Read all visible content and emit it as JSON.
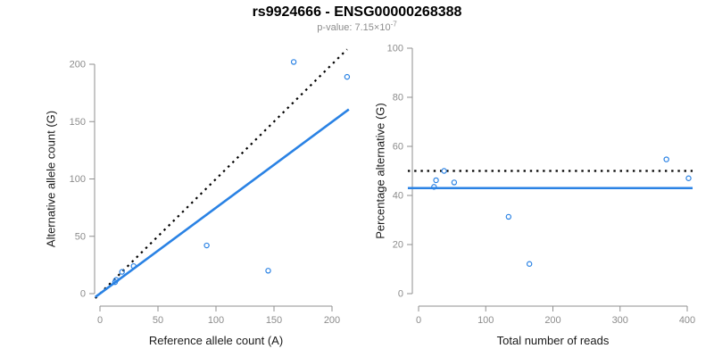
{
  "header": {
    "title": "rs9924666 - ENSG00000268388",
    "subtitle_text": "p-value: 7.15×10",
    "subtitle_exponent": "-7"
  },
  "colors": {
    "point_blue": "#2a82e4",
    "fit_blue": "#2a82e4",
    "reference_black": "#000000",
    "axis_gray": "#8f8f8f",
    "tick_label_gray": "#8c8c8c",
    "axis_title_black": "#1a1a1a",
    "subtitle_gray": "#8c8c8c",
    "background": "#ffffff"
  },
  "chart_data": [
    {
      "type": "scatter",
      "panel": "left",
      "xlabel": "Reference allele count (A)",
      "ylabel": "Alternative allele count (G)",
      "xlim": [
        0,
        200
      ],
      "ylim": [
        0,
        200
      ],
      "xticks": [
        0,
        50,
        100,
        150,
        200
      ],
      "yticks": [
        0,
        50,
        100,
        150,
        200
      ],
      "grid": false,
      "legend": null,
      "point_color": "#2a82e4",
      "points": [
        [
          13,
          10
        ],
        [
          14,
          12
        ],
        [
          19,
          19
        ],
        [
          29,
          24
        ],
        [
          92,
          42
        ],
        [
          145,
          20
        ],
        [
          167,
          202
        ],
        [
          213,
          189
        ]
      ],
      "lines": [
        {
          "name": "identity-reference-line",
          "kind": "abline",
          "slope": 1,
          "intercept": 0,
          "style": "dotted",
          "color": "#000000"
        },
        {
          "name": "fitted-ratio-line",
          "kind": "abline",
          "slope": 0.749,
          "intercept": 0,
          "style": "solid",
          "color": "#2a82e4"
        }
      ]
    },
    {
      "type": "scatter",
      "panel": "right",
      "xlabel": "Total number of reads",
      "ylabel": "Percentage alternative (G)",
      "xlim": [
        0,
        400
      ],
      "ylim": [
        0,
        100
      ],
      "xticks": [
        0,
        100,
        200,
        300,
        400
      ],
      "yticks": [
        0,
        20,
        40,
        60,
        80,
        100
      ],
      "grid": false,
      "legend": null,
      "point_color": "#2a82e4",
      "points": [
        [
          23,
          43.5
        ],
        [
          26,
          46.2
        ],
        [
          38,
          50.0
        ],
        [
          53,
          45.3
        ],
        [
          134,
          31.3
        ],
        [
          165,
          12.1
        ],
        [
          369,
          54.7
        ],
        [
          402,
          47.0
        ]
      ],
      "lines": [
        {
          "name": "expected-percentage-line",
          "kind": "hline",
          "y": 50,
          "style": "dotted",
          "color": "#000000"
        },
        {
          "name": "mean-percentage-line",
          "kind": "hline",
          "y": 43,
          "style": "solid",
          "color": "#2a82e4"
        }
      ]
    }
  ]
}
